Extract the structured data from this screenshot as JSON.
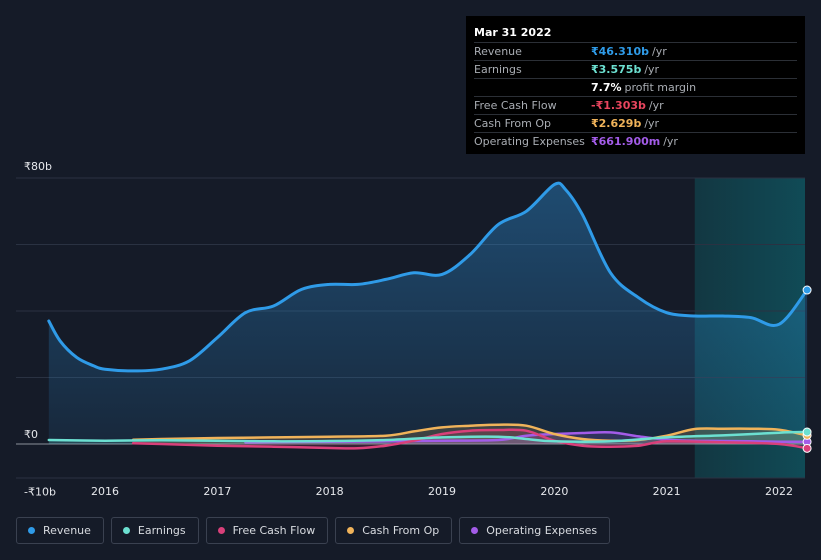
{
  "tooltip": {
    "date": "Mar 31 2022",
    "rows": [
      {
        "label": "Revenue",
        "value": "₹46.310b",
        "unit": "/yr",
        "color": "#2f9be8"
      },
      {
        "label": "Earnings",
        "value": "₹3.575b",
        "unit": "/yr",
        "color": "#6ce0d1"
      },
      {
        "label": "",
        "value": "7.7%",
        "unit": "profit margin",
        "color": "#ffffff"
      },
      {
        "label": "Free Cash Flow",
        "value": "-₹1.303b",
        "unit": "/yr",
        "color": "#e8455e"
      },
      {
        "label": "Cash From Op",
        "value": "₹2.629b",
        "unit": "/yr",
        "color": "#f0b35a"
      },
      {
        "label": "Operating Expenses",
        "value": "₹661.900m",
        "unit": "/yr",
        "color": "#a35ce8"
      }
    ]
  },
  "legend": [
    {
      "label": "Revenue",
      "color": "#2f9be8"
    },
    {
      "label": "Earnings",
      "color": "#6ce0d1"
    },
    {
      "label": "Free Cash Flow",
      "color": "#d9407a"
    },
    {
      "label": "Cash From Op",
      "color": "#f0b35a"
    },
    {
      "label": "Operating Expenses",
      "color": "#a35ce8"
    }
  ],
  "chart_data": {
    "type": "area",
    "x_tick_labels": [
      "2016",
      "2017",
      "2018",
      "2019",
      "2020",
      "2021",
      "2022"
    ],
    "x_tick_values": [
      2016,
      2017,
      2018,
      2019,
      2020,
      2021,
      2022
    ],
    "y_tick_labels": [
      "₹80b",
      "₹0",
      "-₹10b"
    ],
    "y_tick_values": [
      80,
      0,
      -10
    ],
    "ylim": [
      -10,
      80
    ],
    "xlim": [
      2015.5,
      2022.25
    ],
    "unit": "₹ billions",
    "grid": true,
    "forecast_region_start": 2021.25,
    "series": [
      {
        "name": "Revenue",
        "color": "#2f9be8",
        "x": [
          2015.5,
          2015.6,
          2015.75,
          2015.9,
          2016.0,
          2016.25,
          2016.5,
          2016.75,
          2017.0,
          2017.25,
          2017.5,
          2017.75,
          2018.0,
          2018.25,
          2018.5,
          2018.75,
          2019.0,
          2019.25,
          2019.5,
          2019.75,
          2020.0,
          2020.1,
          2020.25,
          2020.5,
          2020.75,
          2021.0,
          2021.25,
          2021.5,
          2021.75,
          2022.0,
          2022.25
        ],
        "values": [
          37,
          31,
          26,
          23.5,
          22.5,
          22,
          22.5,
          25,
          32,
          39.5,
          41.5,
          46.5,
          48,
          48,
          49.5,
          51.5,
          51,
          57,
          66,
          70,
          78,
          76.5,
          69,
          51.5,
          44,
          39.5,
          38.5,
          38.5,
          38,
          36,
          46.3
        ]
      },
      {
        "name": "Earnings",
        "color": "#6ce0d1",
        "x": [
          2015.5,
          2016.0,
          2016.5,
          2017.0,
          2017.5,
          2018.0,
          2018.5,
          2019.0,
          2019.5,
          2019.75,
          2020.0,
          2020.5,
          2021.0,
          2021.5,
          2022.0,
          2022.25
        ],
        "values": [
          1.2,
          1.0,
          1.1,
          1.0,
          0.8,
          0.9,
          1.2,
          2.0,
          2.2,
          1.5,
          0.8,
          0.8,
          2.0,
          2.6,
          3.4,
          3.6
        ]
      },
      {
        "name": "Free Cash Flow",
        "color": "#d9407a",
        "x": [
          2016.25,
          2016.5,
          2017.0,
          2017.5,
          2018.0,
          2018.25,
          2018.5,
          2018.75,
          2019.0,
          2019.25,
          2019.5,
          2019.75,
          2020.0,
          2020.25,
          2020.5,
          2020.75,
          2021.0,
          2021.5,
          2022.0,
          2022.25
        ],
        "values": [
          0.2,
          0,
          -0.5,
          -0.8,
          -1.2,
          -1.3,
          -0.5,
          1.0,
          3.0,
          4.0,
          4.2,
          4.0,
          1.0,
          -0.5,
          -0.8,
          -0.5,
          0.8,
          0.5,
          0,
          -1.3
        ]
      },
      {
        "name": "Cash From Op",
        "color": "#f0b35a",
        "x": [
          2016.25,
          2016.5,
          2017.0,
          2017.5,
          2018.0,
          2018.5,
          2018.75,
          2019.0,
          2019.25,
          2019.5,
          2019.75,
          2020.0,
          2020.25,
          2020.5,
          2020.75,
          2021.0,
          2021.25,
          2021.5,
          2021.75,
          2022.0,
          2022.25
        ],
        "values": [
          1.3,
          1.5,
          1.8,
          2.0,
          2.2,
          2.5,
          3.8,
          5.0,
          5.5,
          5.8,
          5.5,
          3.0,
          1.5,
          1.0,
          1.2,
          2.5,
          4.5,
          4.6,
          4.6,
          4.3,
          2.6
        ]
      },
      {
        "name": "Operating Expenses",
        "color": "#a35ce8",
        "x": [
          2017.25,
          2017.5,
          2018.0,
          2018.5,
          2019.0,
          2019.5,
          2019.75,
          2020.0,
          2020.25,
          2020.5,
          2020.75,
          2021.0,
          2021.25,
          2021.5,
          2021.75,
          2022.0,
          2022.25
        ],
        "values": [
          0.5,
          0.6,
          0.7,
          0.8,
          1.0,
          1.2,
          2.5,
          3.0,
          3.3,
          3.5,
          2.3,
          1.3,
          1.0,
          0.9,
          0.8,
          0.7,
          0.66
        ]
      }
    ]
  }
}
